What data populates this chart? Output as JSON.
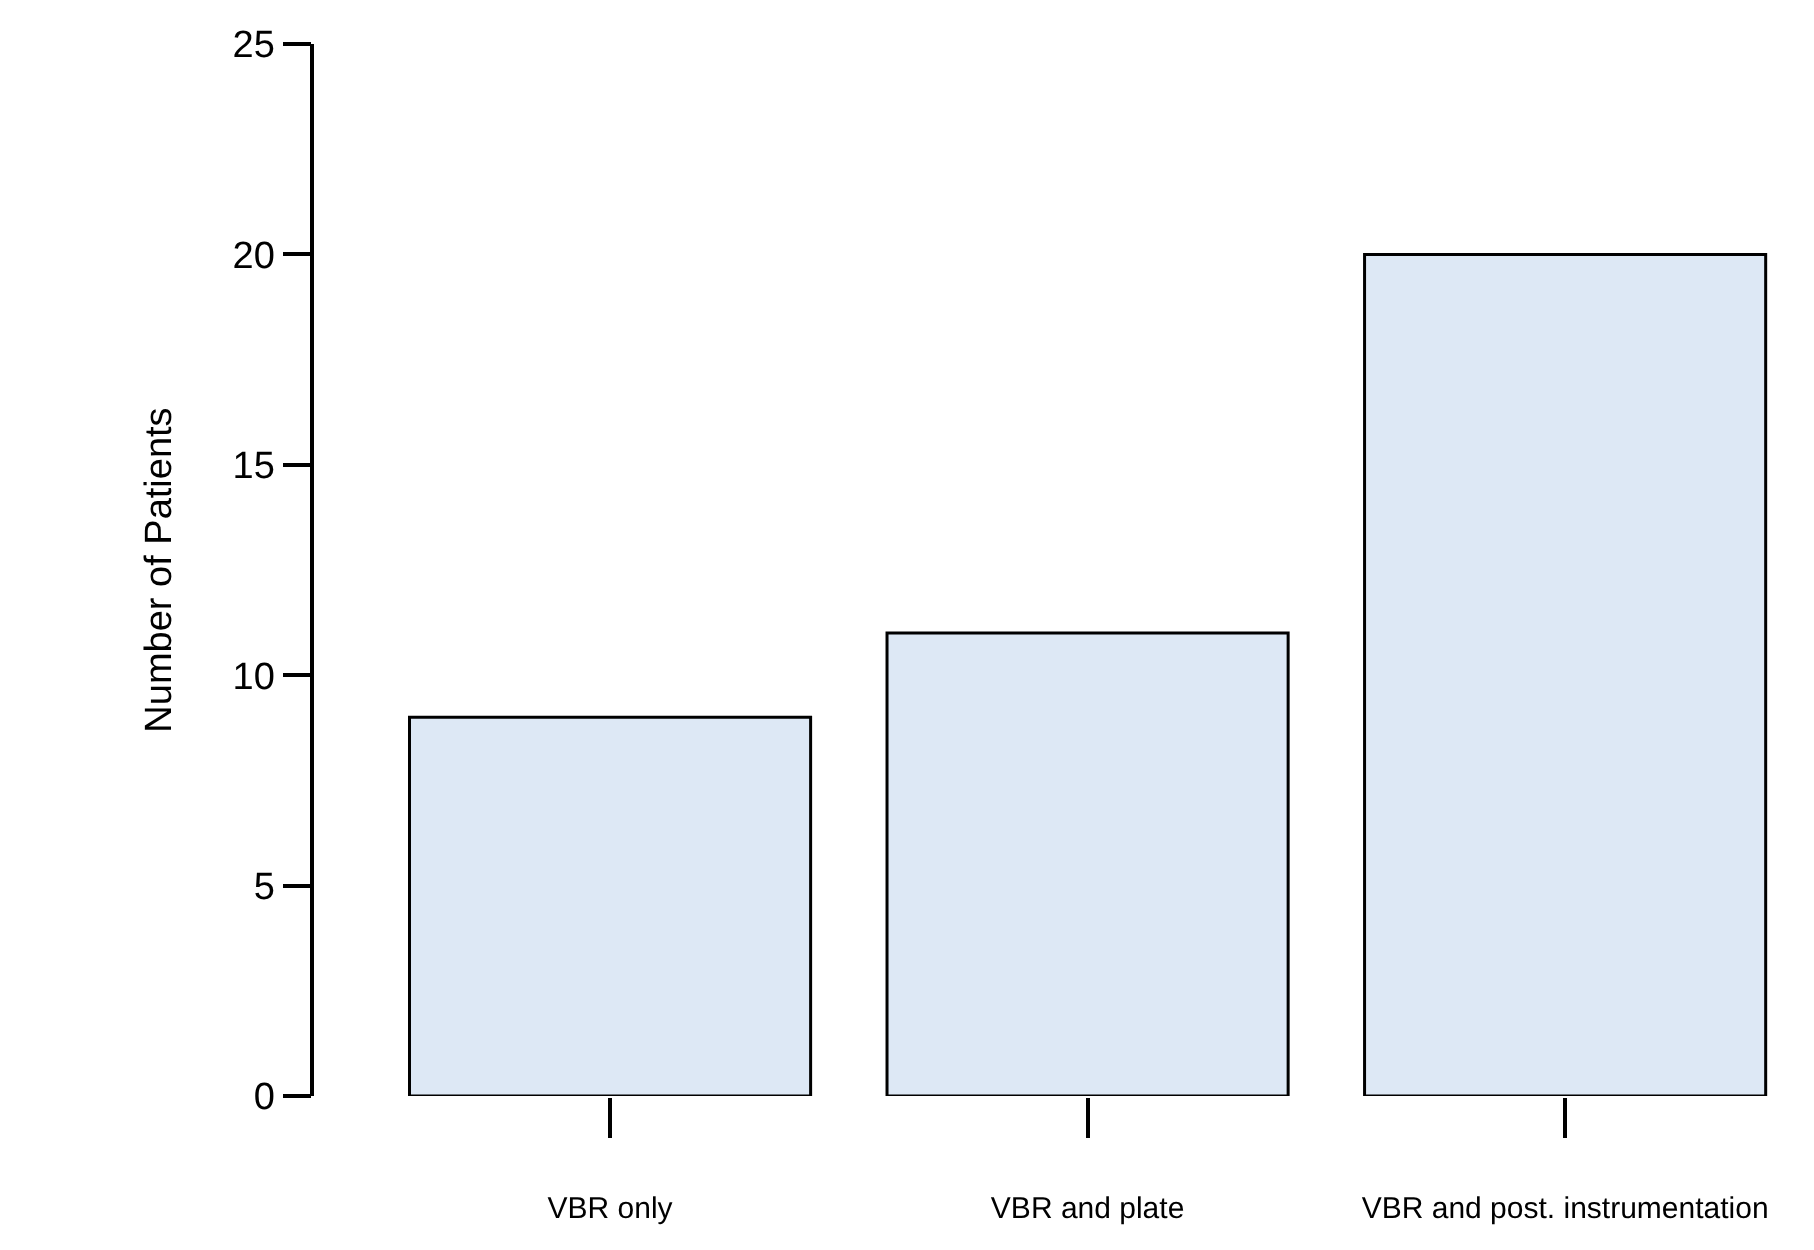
{
  "chart_data": {
    "type": "bar",
    "ylabel": "Number of Patients",
    "categories": [
      "VBR only",
      "VBR and plate",
      "VBR and post. instrumentation"
    ],
    "values": [
      9,
      11,
      20
    ],
    "color": "#dde8f5",
    "ylim": [
      0,
      25
    ],
    "yticks": [
      0,
      5,
      10,
      15,
      20,
      25
    ]
  }
}
